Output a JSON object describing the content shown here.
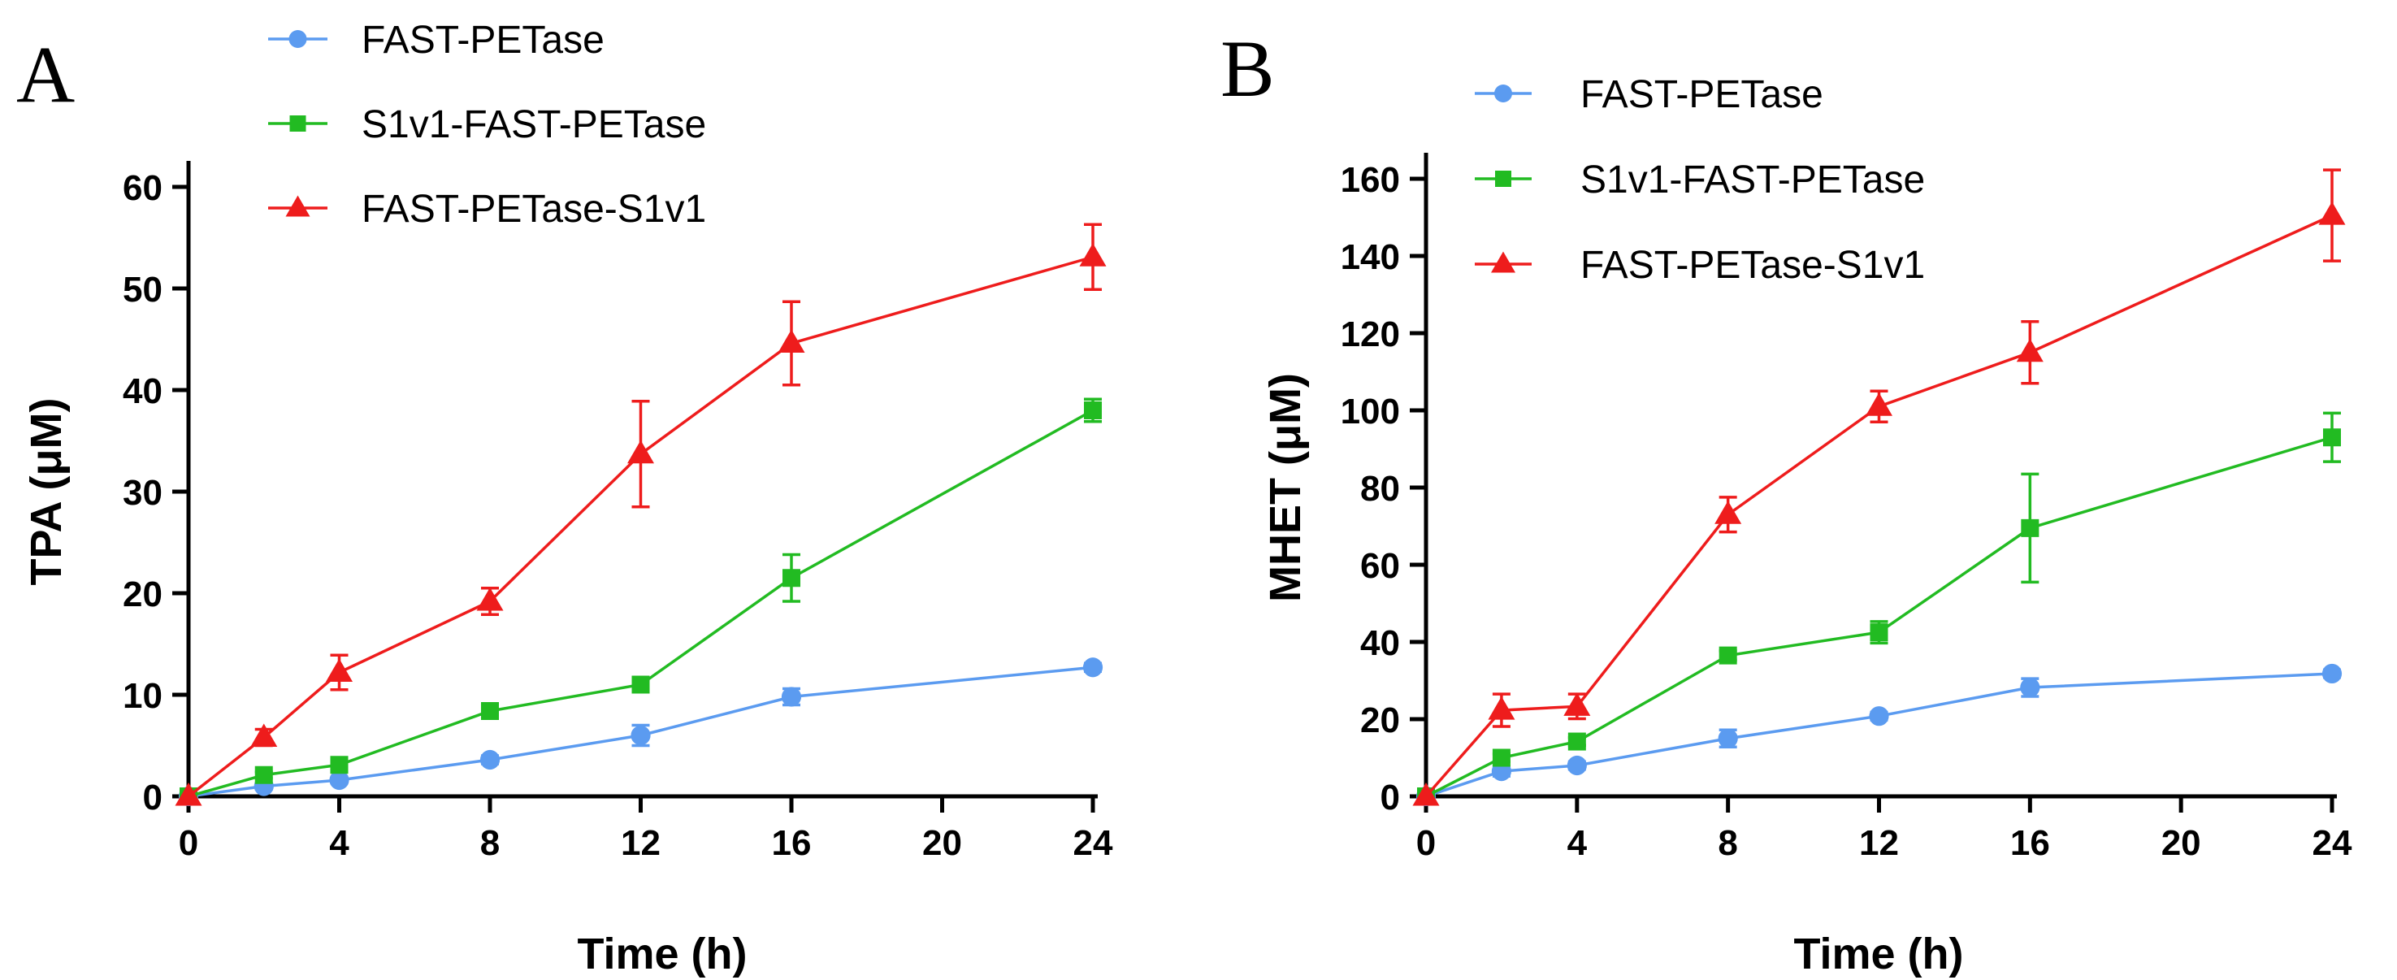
{
  "chart_data": [
    {
      "type": "line",
      "panel_label": "A",
      "title": "",
      "xlabel": "Time (h)",
      "ylabel": "TPA (μM)",
      "xlim": [
        0,
        24
      ],
      "ylim": [
        0,
        60
      ],
      "xticks": [
        0,
        4,
        8,
        12,
        16,
        20,
        24
      ],
      "yticks": [
        0,
        10,
        20,
        30,
        40,
        50,
        60
      ],
      "x": [
        0,
        2,
        4,
        8,
        12,
        16,
        24
      ],
      "legend": "top-left",
      "series": [
        {
          "name": "FAST-PETase",
          "color": "#5b9bf0",
          "marker": "circle",
          "values": [
            0,
            1.0,
            1.6,
            3.6,
            6.0,
            9.8,
            12.7
          ],
          "errors": [
            0,
            0.3,
            0.3,
            0.4,
            1.0,
            0.8,
            0.4
          ]
        },
        {
          "name": "S1v1-FAST-PETase",
          "color": "#22bb22",
          "marker": "square",
          "values": [
            0,
            2.1,
            3.1,
            8.4,
            11.0,
            21.5,
            38.0
          ],
          "errors": [
            0,
            0.3,
            0.3,
            0.4,
            0.7,
            2.3,
            1.1
          ]
        },
        {
          "name": "FAST-PETase-S1v1",
          "color": "#ee1c1c",
          "marker": "triangle",
          "values": [
            0,
            5.8,
            12.2,
            19.2,
            33.7,
            44.6,
            53.1
          ],
          "errors": [
            0,
            0.8,
            1.7,
            1.3,
            5.2,
            4.1,
            3.2
          ]
        }
      ]
    },
    {
      "type": "line",
      "panel_label": "B",
      "title": "",
      "xlabel": "Time (h)",
      "ylabel": "MHET (μM)",
      "xlim": [
        0,
        24
      ],
      "ylim": [
        0,
        160
      ],
      "xticks": [
        0,
        4,
        8,
        12,
        16,
        20,
        24
      ],
      "yticks": [
        0,
        20,
        40,
        60,
        80,
        100,
        120,
        140,
        160
      ],
      "x": [
        0,
        2,
        4,
        8,
        12,
        16,
        24
      ],
      "legend": "top-left",
      "series": [
        {
          "name": "FAST-PETase",
          "color": "#5b9bf0",
          "marker": "circle",
          "values": [
            0,
            6.5,
            8.0,
            15.0,
            20.8,
            28.2,
            31.8
          ],
          "errors": [
            0,
            1.3,
            1.0,
            2.2,
            1.0,
            2.3,
            1.0
          ]
        },
        {
          "name": "S1v1-FAST-PETase",
          "color": "#22bb22",
          "marker": "square",
          "values": [
            0,
            10.0,
            14.2,
            36.5,
            42.5,
            69.5,
            93.0
          ],
          "errors": [
            0,
            1.0,
            1.0,
            1.2,
            2.8,
            14.0,
            6.3
          ]
        },
        {
          "name": "FAST-PETase-S1v1",
          "color": "#ee1c1c",
          "marker": "triangle",
          "values": [
            0,
            22.3,
            23.3,
            73.0,
            101.0,
            115.0,
            150.5
          ],
          "errors": [
            0,
            4.2,
            3.2,
            4.5,
            4.0,
            8.0,
            11.8
          ]
        }
      ]
    }
  ]
}
